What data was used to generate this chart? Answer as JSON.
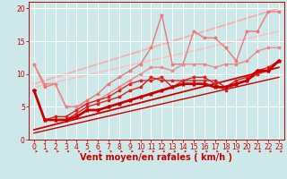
{
  "title": "",
  "xlabel": "Vent moyen/en rafales ( km/h )",
  "ylabel": "",
  "background_color": "#cce8e8",
  "grid_color": "#ffffff",
  "xlim": [
    -0.5,
    23.5
  ],
  "ylim": [
    0,
    21
  ],
  "yticks": [
    0,
    5,
    10,
    15,
    20
  ],
  "xticks": [
    0,
    1,
    2,
    3,
    4,
    5,
    6,
    7,
    8,
    9,
    10,
    11,
    12,
    13,
    14,
    15,
    16,
    17,
    18,
    19,
    20,
    21,
    22,
    23
  ],
  "x": [
    0,
    1,
    2,
    3,
    4,
    5,
    6,
    7,
    8,
    9,
    10,
    11,
    12,
    13,
    14,
    15,
    16,
    17,
    18,
    19,
    20,
    21,
    22,
    23
  ],
  "red_thick": [
    7.5,
    3.0,
    3.0,
    3.0,
    3.5,
    4.5,
    4.5,
    5.0,
    5.5,
    6.0,
    6.5,
    7.0,
    7.5,
    8.0,
    8.5,
    8.5,
    8.5,
    8.0,
    8.0,
    8.5,
    9.0,
    10.5,
    10.5,
    12.0
  ],
  "red_thick_color": "#cc0000",
  "red_thick_lw": 2.0,
  "red_mid1": [
    7.5,
    3.0,
    3.0,
    3.0,
    4.0,
    5.0,
    5.5,
    6.0,
    6.5,
    7.5,
    8.0,
    9.5,
    9.0,
    9.0,
    9.0,
    9.5,
    9.5,
    8.5,
    7.5,
    8.5,
    9.0,
    10.0,
    10.5,
    12.0
  ],
  "red_mid1_color": "#dd2222",
  "red_mid1_lw": 1.0,
  "red_mid2": [
    7.5,
    3.0,
    3.5,
    3.5,
    4.5,
    5.5,
    6.0,
    6.5,
    7.5,
    8.5,
    9.0,
    9.0,
    9.5,
    8.0,
    9.0,
    9.0,
    9.0,
    9.0,
    8.0,
    9.0,
    9.5,
    10.5,
    11.0,
    12.0
  ],
  "red_mid2_color": "#dd2222",
  "red_mid2_lw": 1.0,
  "red_trend_x": [
    0,
    23
  ],
  "red_trend_y": [
    1.5,
    11.0
  ],
  "red_trend_color": "#cc0000",
  "red_trend_lw": 1.3,
  "red_trend2_x": [
    0,
    23
  ],
  "red_trend2_y": [
    1.0,
    9.5
  ],
  "red_trend2_color": "#cc0000",
  "red_trend2_lw": 1.0,
  "pink_upper": [
    11.5,
    8.0,
    8.5,
    5.0,
    5.0,
    6.0,
    7.0,
    8.5,
    9.5,
    10.5,
    11.5,
    14.0,
    19.0,
    11.5,
    11.5,
    16.5,
    15.5,
    15.5,
    14.0,
    12.0,
    16.5,
    16.5,
    19.5,
    19.5
  ],
  "pink_upper_color": "#ee7777",
  "pink_upper_lw": 1.0,
  "pink_lower": [
    11.5,
    8.5,
    8.5,
    5.0,
    5.0,
    5.5,
    6.0,
    7.0,
    8.0,
    9.0,
    10.0,
    11.0,
    11.0,
    10.5,
    11.5,
    11.5,
    11.5,
    11.0,
    11.5,
    11.5,
    12.0,
    13.5,
    14.0,
    14.0
  ],
  "pink_lower_color": "#ee8888",
  "pink_lower_lw": 1.0,
  "pink_trend1_x": [
    0,
    23
  ],
  "pink_trend1_y": [
    8.5,
    20.0
  ],
  "pink_trend1_color": "#ffaaaa",
  "pink_trend1_lw": 1.2,
  "pink_trend2_x": [
    0,
    23
  ],
  "pink_trend2_y": [
    8.0,
    16.5
  ],
  "pink_trend2_color": "#ffbbbb",
  "pink_trend2_lw": 1.0,
  "arrow_color": "#cc0000",
  "xlabel_color": "#cc0000",
  "xlabel_fontsize": 7,
  "tick_color": "#cc0000",
  "tick_fontsize": 5.5
}
